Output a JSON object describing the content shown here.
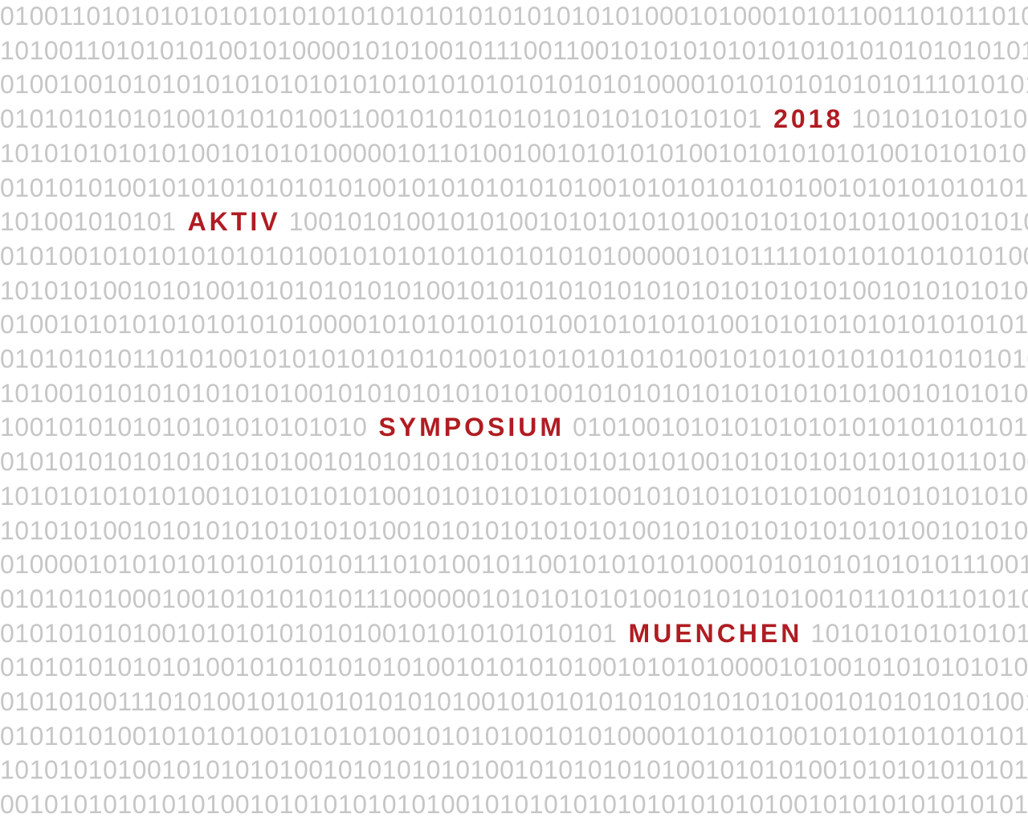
{
  "colors": {
    "background": "#ffffff",
    "binary_text": "#c6c6c6",
    "highlight_text": "#b01c22"
  },
  "rows": [
    {
      "segments": [
        {
          "text": "0100110101010101010101010101010101010101010100010100010101100110101101010",
          "type": "bits"
        }
      ]
    },
    {
      "segments": [
        {
          "text": "1010011010101010010100001010100101110011001010101010101010101010101010101",
          "type": "bits"
        }
      ]
    },
    {
      "segments": [
        {
          "text": "0100100101010101010101010101010101010101010100001010101010101011101010101",
          "type": "bits"
        }
      ]
    },
    {
      "segments": [
        {
          "text": "0101010101010010101010011001010101010101010101010101",
          "type": "bits"
        },
        {
          "text": "2018",
          "type": "word"
        },
        {
          "text": "10101010101010100",
          "type": "bits"
        }
      ]
    },
    {
      "segments": [
        {
          "text": "1010101010101001010101000001011010010010101010100101010101010010101010101",
          "type": "bits"
        }
      ]
    },
    {
      "segments": [
        {
          "text": "0101010100101010101010101001010101010101001010101010101001010101010101010",
          "type": "bits"
        }
      ]
    },
    {
      "segments": [
        {
          "text": "101001010101",
          "type": "bits"
        },
        {
          "text": "AKTIV",
          "type": "word"
        },
        {
          "text": "1001010100101010010101010101001010101010101001010101",
          "type": "bits"
        }
      ]
    },
    {
      "segments": [
        {
          "text": "0101001010101010101010010101010101010101010000010101111010101010101010010",
          "type": "bits"
        }
      ]
    },
    {
      "segments": [
        {
          "text": "1010101001010100101010101010100101010101010101010101010101001010101010101",
          "type": "bits"
        }
      ]
    },
    {
      "segments": [
        {
          "text": "0100101010101010101010000101010101010100101010101001010101010101010101001",
          "type": "bits"
        }
      ]
    },
    {
      "segments": [
        {
          "text": "0101010101101010010101010101010100101010101010100101010101010101010101010",
          "type": "bits"
        }
      ]
    },
    {
      "segments": [
        {
          "text": "1010010101010101010100101010101010101001010101010101010101010010101010110",
          "type": "bits"
        }
      ]
    },
    {
      "segments": [
        {
          "text": "1001010101010101010101010",
          "type": "bits"
        },
        {
          "text": "SYMPOSIUM",
          "type": "word"
        },
        {
          "text": "0101001010101010101010101010101001",
          "type": "bits"
        }
      ]
    },
    {
      "segments": [
        {
          "text": "0101010101010101010100101010101010101010101010100101010101010101011010010",
          "type": "bits"
        }
      ]
    },
    {
      "segments": [
        {
          "text": "1010101010101001010101010100101010101010100101010101010100101010101010010",
          "type": "bits"
        }
      ]
    },
    {
      "segments": [
        {
          "text": "1010101001010101010101010100101010101010101001010101010101010100101010101",
          "type": "bits"
        }
      ]
    },
    {
      "segments": [
        {
          "text": "0100001010101010101010101110101001011001010101010001010101010101011100110",
          "type": "bits"
        }
      ]
    },
    {
      "segments": [
        {
          "text": "0101010100010010101010101110000001010101010100101010101001011010110101010",
          "type": "bits"
        }
      ]
    },
    {
      "segments": [
        {
          "text": "010101010100101010101010100101010101010101",
          "type": "bits"
        },
        {
          "text": "MUENCHEN",
          "type": "word"
        },
        {
          "text": "10101010101010100101",
          "type": "bits"
        }
      ]
    },
    {
      "segments": [
        {
          "text": "0101010101010100101010101010100101010101001010101000010100101010101010101",
          "type": "bits"
        }
      ]
    },
    {
      "segments": [
        {
          "text": "0101010011101010010101010101010100101010101010101010101001010101010100101",
          "type": "bits"
        }
      ]
    },
    {
      "segments": [
        {
          "text": "0101010100101010100101010100101010100101010000101010100101010101010101011",
          "type": "bits"
        }
      ]
    },
    {
      "segments": [
        {
          "text": "1010101010010101010100101010101010010101010101001010101001010101010101010",
          "type": "bits"
        }
      ]
    },
    {
      "segments": [
        {
          "text": "0010101010101010010101010101010010101010101010101010100101010101010101001",
          "type": "bits"
        }
      ]
    }
  ]
}
